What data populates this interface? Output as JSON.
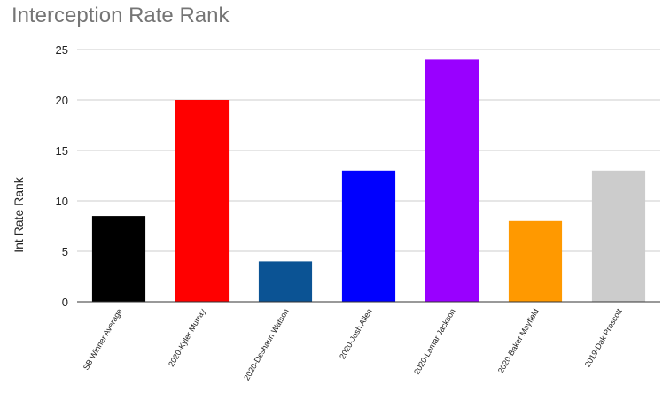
{
  "chart_data": {
    "type": "bar",
    "title": "Interception Rate Rank",
    "ylabel": "Int Rate Rank",
    "xlabel": "",
    "ylim": [
      0,
      25
    ],
    "yticks": [
      0,
      5,
      10,
      15,
      20,
      25
    ],
    "grid": true,
    "categories": [
      "SB Winner Average",
      "2020-Kyler Murray",
      "2020-Deshaun Watson",
      "2020-Josh Allen",
      "2020-Lamar Jackson",
      "2020-Baker Mayfield",
      "2019-Dak Prescott"
    ],
    "values": [
      8.5,
      20,
      4,
      13,
      24,
      8,
      13
    ],
    "colors": [
      "#000000",
      "#ff0000",
      "#0b5394",
      "#0000ff",
      "#9900ff",
      "#ff9900",
      "#cccccc"
    ]
  }
}
